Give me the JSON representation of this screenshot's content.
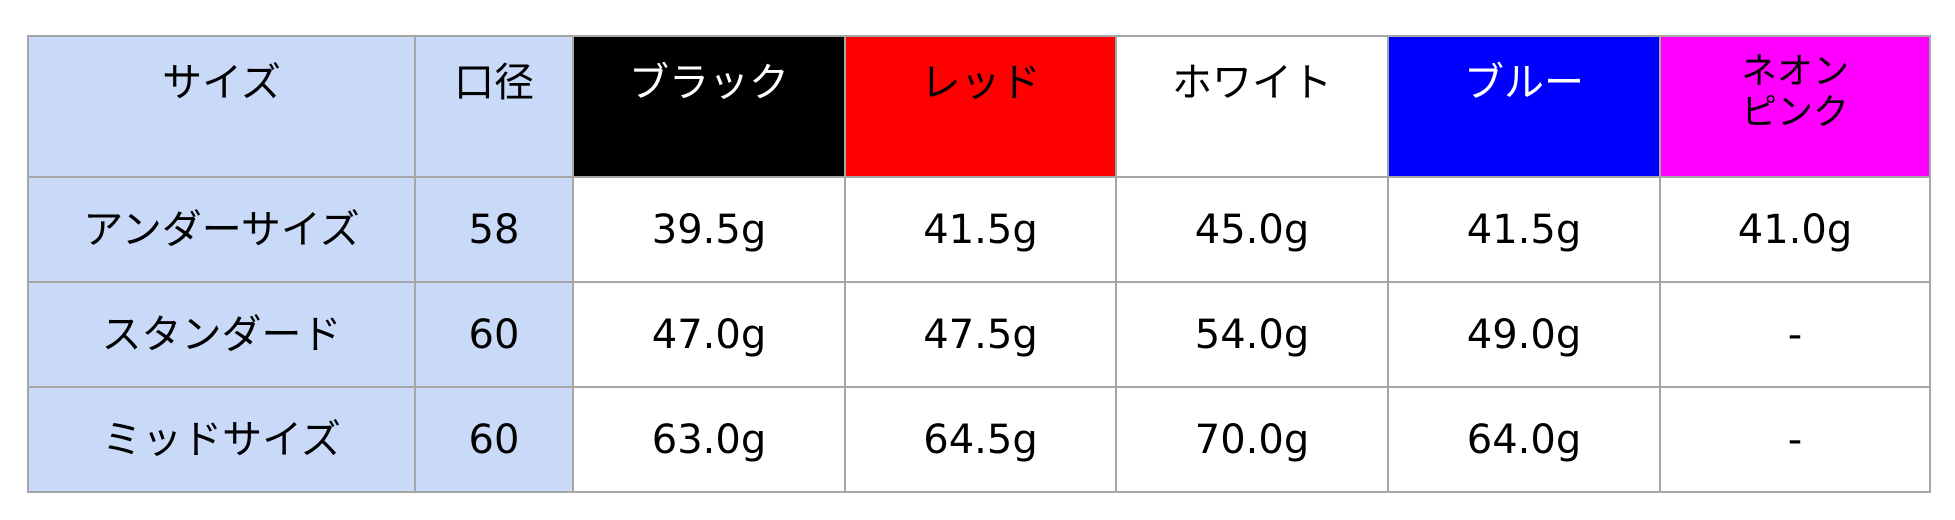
{
  "headers": [
    {
      "label": "サイズ",
      "bg": "#c9daf8",
      "color": "#000000"
    },
    {
      "label": "口径",
      "bg": "#c9daf8",
      "color": "#000000"
    },
    {
      "label": "ブラック",
      "bg": "#000000",
      "color": "#ffffff"
    },
    {
      "label": "レッド",
      "bg": "#ff0000",
      "color": "#000000"
    },
    {
      "label": "ホワイト",
      "bg": "#ffffff",
      "color": "#000000"
    },
    {
      "label": "ブルー",
      "bg": "#0000ff",
      "color": "#ffffff"
    },
    {
      "label": "ネオン\nピンク",
      "bg": "#ff00ff",
      "color": "#000000"
    }
  ],
  "rows": [
    [
      "アンダーサイズ",
      "58",
      "39.5g",
      "41.5g",
      "45.0g",
      "41.5g",
      "41.0g"
    ],
    [
      "スタンダード",
      "60",
      "47.0g",
      "47.5g",
      "54.0g",
      "49.0g",
      "-"
    ],
    [
      "ミッドサイズ",
      "60",
      "63.0g",
      "64.5g",
      "70.0g",
      "64.0g",
      "-"
    ]
  ]
}
